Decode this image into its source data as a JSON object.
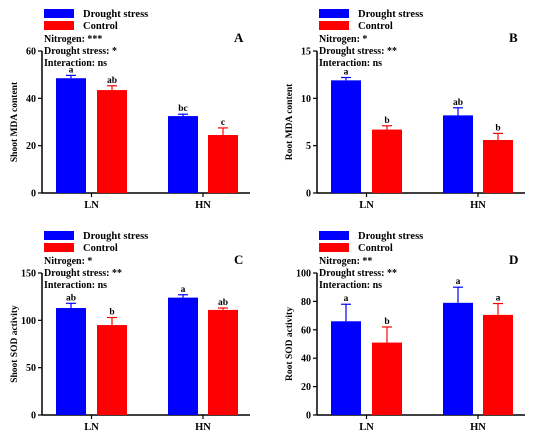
{
  "legend": [
    "Drought stress",
    "Control"
  ],
  "colors": {
    "drought": "#0000ff",
    "control": "#ff0000",
    "axis": "#000000"
  },
  "chart_data": [
    {
      "type": "bar",
      "panel": "A",
      "ylabel": "Shoot MDA content",
      "categories": [
        "LN",
        "HN"
      ],
      "ylim": [
        0,
        60
      ],
      "yticks": [
        "0",
        "20",
        "40",
        "60"
      ],
      "stats": [
        "Nitrogen: ***",
        "Drought stress: *",
        "Interaction: ns"
      ],
      "series": [
        {
          "name": "Drought stress",
          "values": [
            48.5,
            32.5
          ],
          "errors": [
            1.2,
            0.8
          ],
          "letters": [
            "a",
            "bc"
          ]
        },
        {
          "name": "Control",
          "values": [
            43.5,
            24.5
          ],
          "errors": [
            1.8,
            3.0
          ],
          "letters": [
            "ab",
            "c"
          ]
        }
      ]
    },
    {
      "type": "bar",
      "panel": "B",
      "ylabel": "Root MDA content",
      "categories": [
        "LN",
        "HN"
      ],
      "ylim": [
        0,
        15
      ],
      "yticks": [
        "0",
        "5",
        "10",
        "15"
      ],
      "stats": [
        "Nitrogen: *",
        "Drought stress: **",
        "Interaction: ns"
      ],
      "series": [
        {
          "name": "Drought stress",
          "values": [
            11.9,
            8.2
          ],
          "errors": [
            0.3,
            0.8
          ],
          "letters": [
            "a",
            "ab"
          ]
        },
        {
          "name": "Control",
          "values": [
            6.7,
            5.6
          ],
          "errors": [
            0.4,
            0.7
          ],
          "letters": [
            "b",
            "b"
          ]
        }
      ]
    },
    {
      "type": "bar",
      "panel": "C",
      "ylabel": "Shoot SOD activity",
      "categories": [
        "LN",
        "HN"
      ],
      "ylim": [
        0,
        150
      ],
      "yticks": [
        "0",
        "50",
        "100",
        "150"
      ],
      "stats": [
        "Nitrogen: *",
        "Drought stress: **",
        "Interaction: ns"
      ],
      "series": [
        {
          "name": "Drought stress",
          "values": [
            113,
            124
          ],
          "errors": [
            5,
            3
          ],
          "letters": [
            "ab",
            "a"
          ]
        },
        {
          "name": "Control",
          "values": [
            95,
            111
          ],
          "errors": [
            8,
            2
          ],
          "letters": [
            "b",
            "ab"
          ]
        }
      ]
    },
    {
      "type": "bar",
      "panel": "D",
      "ylabel": "Root SOD activity",
      "categories": [
        "LN",
        "HN"
      ],
      "ylim": [
        0,
        100
      ],
      "yticks": [
        "0",
        "20",
        "40",
        "60",
        "80",
        "100"
      ],
      "stats": [
        "Nitrogen: **",
        "Drought stress: **",
        "Interaction: ns"
      ],
      "series": [
        {
          "name": "Drought stress",
          "values": [
            66,
            79
          ],
          "errors": [
            12,
            11
          ],
          "letters": [
            "a",
            "a"
          ]
        },
        {
          "name": "Control",
          "values": [
            51,
            70.5
          ],
          "errors": [
            11,
            8
          ],
          "letters": [
            "b",
            "a"
          ]
        }
      ]
    }
  ]
}
